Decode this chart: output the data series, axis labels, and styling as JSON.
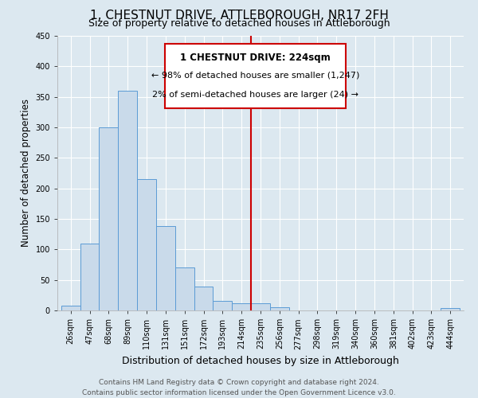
{
  "title": "1, CHESTNUT DRIVE, ATTLEBOROUGH, NR17 2FH",
  "subtitle": "Size of property relative to detached houses in Attleborough",
  "xlabel": "Distribution of detached houses by size in Attleborough",
  "ylabel": "Number of detached properties",
  "bar_labels": [
    "26sqm",
    "47sqm",
    "68sqm",
    "89sqm",
    "110sqm",
    "131sqm",
    "151sqm",
    "172sqm",
    "193sqm",
    "214sqm",
    "235sqm",
    "256sqm",
    "277sqm",
    "298sqm",
    "319sqm",
    "340sqm",
    "360sqm",
    "381sqm",
    "402sqm",
    "423sqm",
    "444sqm"
  ],
  "bar_heights": [
    8,
    110,
    300,
    360,
    215,
    138,
    70,
    39,
    16,
    12,
    12,
    5,
    0,
    0,
    0,
    0,
    0,
    0,
    0,
    0,
    4
  ],
  "bar_color": "#c9daea",
  "bar_edge_color": "#5b9bd5",
  "marker_line_color": "#cc0000",
  "marker_label": "1 CHESTNUT DRIVE: 224sqm",
  "annotation_line1": "← 98% of detached houses are smaller (1,247)",
  "annotation_line2": "2% of semi-detached houses are larger (24) →",
  "annotation_box_color": "#ffffff",
  "annotation_box_edge_color": "#cc0000",
  "ylim": [
    0,
    450
  ],
  "yticks": [
    0,
    50,
    100,
    150,
    200,
    250,
    300,
    350,
    400,
    450
  ],
  "footer_line1": "Contains HM Land Registry data © Crown copyright and database right 2024.",
  "footer_line2": "Contains public sector information licensed under the Open Government Licence v3.0.",
  "bg_color": "#dce8f0",
  "plot_bg_color": "#dce8f0",
  "title_fontsize": 11,
  "subtitle_fontsize": 9,
  "xlabel_fontsize": 9,
  "ylabel_fontsize": 8.5,
  "tick_fontsize": 7,
  "footer_fontsize": 6.5
}
